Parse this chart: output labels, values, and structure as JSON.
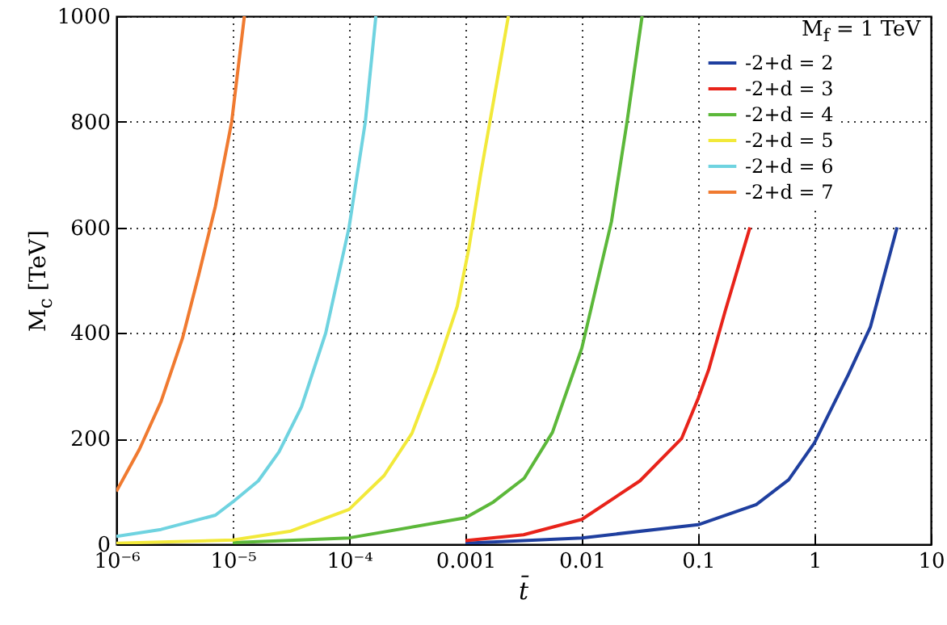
{
  "chart_data": {
    "type": "line",
    "xlabel": "t̄",
    "ylabel": "M$_{c}$ [TeV]",
    "legend_title": "M$_{f}$ = 1 TeV",
    "log": "x",
    "grid": true,
    "legend": "top right",
    "xlim": [
      1e-06,
      10
    ],
    "ylim": [
      0,
      1000
    ],
    "xticks": [
      {
        "value": 1e-06,
        "label": "10⁻⁶"
      },
      {
        "value": 1e-05,
        "label": "10⁻⁵"
      },
      {
        "value": 0.0001,
        "label": "10⁻⁴"
      },
      0.001,
      0.01,
      0.1,
      1,
      10
    ],
    "yticks": [
      0,
      200,
      400,
      600,
      800,
      1000
    ],
    "series": [
      {
        "name": "-2+d = 2",
        "color": "#1f3f9f",
        "x": [
          0.001,
          0.01,
          0.1,
          0.316,
          0.6,
          1,
          1.95,
          3.02,
          5.13
        ],
        "values": [
          2,
          12,
          37,
          75,
          122,
          192,
          321,
          411,
          600
        ]
      },
      {
        "name": "-2+d = 3",
        "color": "#e8231a",
        "x": [
          0.001,
          0.00316,
          0.01,
          0.0316,
          0.072,
          0.1,
          0.123,
          0.17,
          0.279
        ],
        "values": [
          7,
          18,
          47,
          120,
          200,
          276,
          330,
          440,
          600
        ]
      },
      {
        "name": "-2+d = 4",
        "color": "#5cb83a",
        "x": [
          1e-05,
          0.0001,
          0.001,
          0.00174,
          0.0032,
          0.0056,
          0.01,
          0.018,
          0.0245,
          0.033
        ],
        "values": [
          3,
          12,
          50,
          80,
          125,
          212,
          371,
          611,
          800,
          1000
        ]
      },
      {
        "name": "-2+d = 5",
        "color": "#f2e93a",
        "x": [
          1e-06,
          1e-05,
          3.16e-05,
          0.0001,
          0.0002,
          0.000347,
          0.00056,
          0.00085,
          0.00107,
          0.00135,
          0.00178,
          0.00234
        ],
        "values": [
          2,
          8,
          25,
          66,
          130,
          210,
          330,
          450,
          560,
          700,
          850,
          1000
        ]
      },
      {
        "name": "-2+d = 6",
        "color": "#6fd3e0",
        "x": [
          1e-06,
          2.42e-06,
          7.1e-06,
          1e-05,
          1.66e-05,
          2.5e-05,
          3.9e-05,
          6.3e-05,
          0.0001,
          0.000138,
          0.00017
        ],
        "values": [
          15,
          28,
          55,
          80,
          120,
          175,
          260,
          400,
          600,
          800,
          1000
        ]
      },
      {
        "name": "-2+d = 7",
        "color": "#f07a30",
        "x": [
          1e-06,
          1.58e-06,
          2.42e-06,
          3.7e-06,
          5.1e-06,
          7.1e-06,
          9.8e-06,
          1.26e-05
        ],
        "values": [
          100,
          180,
          270,
          390,
          510,
          640,
          800,
          1000
        ]
      }
    ]
  }
}
